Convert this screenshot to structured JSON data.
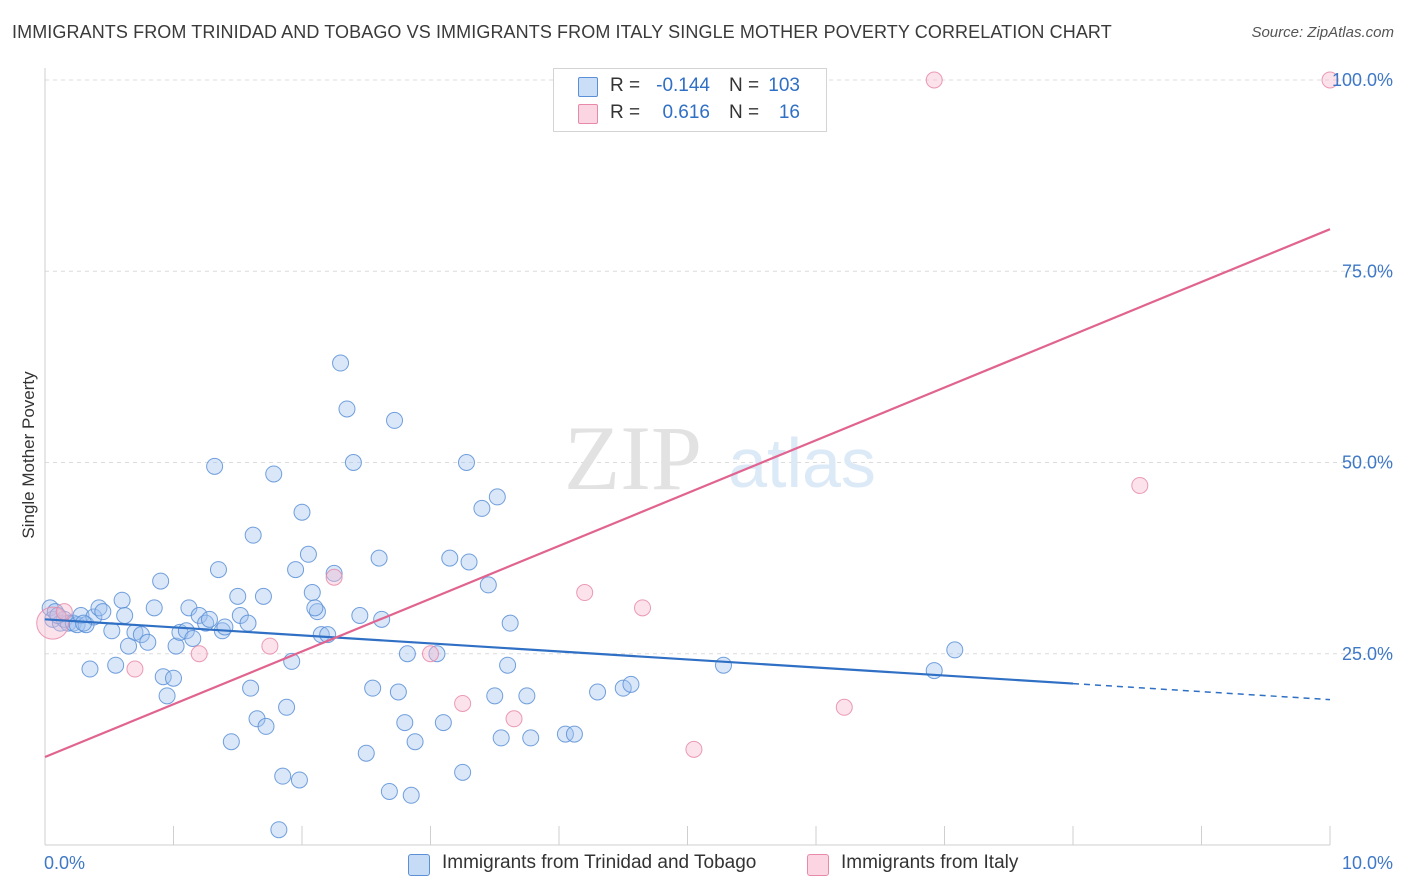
{
  "title": "IMMIGRANTS FROM TRINIDAD AND TOBAGO VS IMMIGRANTS FROM ITALY SINGLE MOTHER POVERTY CORRELATION CHART",
  "source": "Source: ZipAtlas.com",
  "watermark": {
    "zip": "ZIP",
    "atlas": "atlas"
  },
  "colors": {
    "blue": "#5b8fd6",
    "blue_fill": "rgba(160,195,240,0.40)",
    "blue_line": "#2f6fc4",
    "pink": "#e78aa8",
    "pink_fill": "rgba(248,185,205,0.40)",
    "pink_line": "#e0648f",
    "axis_text": "#3e78c6",
    "grid": "#dcdcdc"
  },
  "legend_top": {
    "rows": [
      {
        "r_label": "R =",
        "r_value": "-0.144",
        "n_label": "N =",
        "n_value": "103",
        "color": "blue"
      },
      {
        "r_label": "R =",
        "r_value": "0.616",
        "n_label": "N =",
        "n_value": "16",
        "color": "pink"
      }
    ]
  },
  "legend_bottom": [
    {
      "label": "Immigrants from Trinidad and Tobago",
      "color": "blue"
    },
    {
      "label": "Immigrants from Italy",
      "color": "pink"
    }
  ],
  "chart_data": {
    "type": "scatter",
    "title": "IMMIGRANTS FROM TRINIDAD AND TOBAGO VS IMMIGRANTS FROM ITALY SINGLE MOTHER POVERTY CORRELATION CHART",
    "xlabel": "",
    "ylabel": "Single Mother Poverty",
    "xlim": [
      0,
      10
    ],
    "ylim": [
      0,
      100
    ],
    "x_tick_labels": [
      {
        "value": 0,
        "label": "0.0%"
      },
      {
        "value": 10,
        "label": "10.0%"
      }
    ],
    "y_tick_labels": [
      {
        "value": 25,
        "label": "25.0%"
      },
      {
        "value": 50,
        "label": "50.0%"
      },
      {
        "value": 75,
        "label": "75.0%"
      },
      {
        "value": 100,
        "label": "100.0%"
      }
    ],
    "series": [
      {
        "name": "Immigrants from Trinidad and Tobago",
        "color": "blue",
        "trend": {
          "x0": 0,
          "y0": 29.5,
          "x1": 8.0,
          "y1": 21.1,
          "dash_to_x": 10,
          "dash_to_y": 19.0
        },
        "points": [
          [
            0.04,
            31
          ],
          [
            0.06,
            29.5
          ],
          [
            0.08,
            30.5
          ],
          [
            0.12,
            29
          ],
          [
            0.15,
            29.5
          ],
          [
            0.18,
            29
          ],
          [
            0.22,
            29
          ],
          [
            0.25,
            28.8
          ],
          [
            0.28,
            30
          ],
          [
            0.32,
            28.8
          ],
          [
            0.38,
            29.8
          ],
          [
            0.42,
            31
          ],
          [
            0.45,
            30.5
          ],
          [
            0.52,
            28
          ],
          [
            0.6,
            32
          ],
          [
            0.62,
            30
          ],
          [
            0.7,
            27.8
          ],
          [
            0.75,
            27.5
          ],
          [
            0.8,
            26.5
          ],
          [
            0.85,
            31
          ],
          [
            0.9,
            34.5
          ],
          [
            0.92,
            22
          ],
          [
            0.95,
            19.5
          ],
          [
            1.0,
            21.8
          ],
          [
            1.02,
            26
          ],
          [
            1.05,
            27.8
          ],
          [
            1.1,
            28
          ],
          [
            1.12,
            31
          ],
          [
            1.15,
            27
          ],
          [
            1.2,
            30
          ],
          [
            1.25,
            29
          ],
          [
            1.28,
            29.5
          ],
          [
            1.32,
            49.5
          ],
          [
            1.35,
            36
          ],
          [
            1.38,
            28
          ],
          [
            1.45,
            13.5
          ],
          [
            1.5,
            32.5
          ],
          [
            1.52,
            30
          ],
          [
            1.58,
            29
          ],
          [
            1.6,
            20.5
          ],
          [
            1.62,
            40.5
          ],
          [
            1.65,
            16.5
          ],
          [
            1.7,
            32.5
          ],
          [
            1.72,
            15.5
          ],
          [
            1.78,
            48.5
          ],
          [
            1.82,
            2
          ],
          [
            1.85,
            9
          ],
          [
            1.88,
            18
          ],
          [
            1.92,
            24
          ],
          [
            1.95,
            36
          ],
          [
            1.98,
            8.5
          ],
          [
            2.0,
            43.5
          ],
          [
            2.05,
            38
          ],
          [
            2.08,
            33
          ],
          [
            2.12,
            30.5
          ],
          [
            2.15,
            27.5
          ],
          [
            2.2,
            27.5
          ],
          [
            2.25,
            35.5
          ],
          [
            2.3,
            63
          ],
          [
            2.35,
            57
          ],
          [
            2.4,
            50
          ],
          [
            2.45,
            30
          ],
          [
            2.5,
            12
          ],
          [
            2.6,
            37.5
          ],
          [
            2.62,
            29.5
          ],
          [
            2.68,
            7
          ],
          [
            2.72,
            55.5
          ],
          [
            2.75,
            20
          ],
          [
            2.8,
            16
          ],
          [
            2.82,
            25
          ],
          [
            2.85,
            6.5
          ],
          [
            2.88,
            13.5
          ],
          [
            3.1,
            16
          ],
          [
            3.15,
            37.5
          ],
          [
            3.25,
            9.5
          ],
          [
            3.28,
            50
          ],
          [
            3.3,
            37
          ],
          [
            3.4,
            44
          ],
          [
            3.45,
            34
          ],
          [
            3.5,
            19.5
          ],
          [
            3.52,
            45.5
          ],
          [
            3.55,
            14
          ],
          [
            3.6,
            23.5
          ],
          [
            3.62,
            29
          ],
          [
            3.75,
            19.5
          ],
          [
            3.78,
            14
          ],
          [
            4.05,
            14.5
          ],
          [
            4.12,
            14.5
          ],
          [
            4.3,
            20
          ],
          [
            4.5,
            20.5
          ],
          [
            4.56,
            21
          ],
          [
            5.28,
            23.5
          ],
          [
            6.92,
            22.8
          ],
          [
            7.08,
            25.5
          ],
          [
            0.1,
            30
          ],
          [
            0.3,
            29
          ],
          [
            1.4,
            28.5
          ],
          [
            2.1,
            31
          ],
          [
            0.55,
            23.5
          ],
          [
            0.65,
            26
          ],
          [
            0.35,
            23
          ],
          [
            2.55,
            20.5
          ],
          [
            3.05,
            25
          ]
        ]
      },
      {
        "name": "Immigrants from Italy",
        "color": "pink",
        "trend": {
          "x0": 0,
          "y0": 11.5,
          "x1": 10,
          "y1": 80.5
        },
        "points": [
          [
            0.06,
            29
          ],
          [
            0.15,
            30.5
          ],
          [
            0.7,
            23
          ],
          [
            1.2,
            25
          ],
          [
            1.75,
            26
          ],
          [
            2.25,
            35
          ],
          [
            3.0,
            25
          ],
          [
            3.25,
            18.5
          ],
          [
            3.65,
            16.5
          ],
          [
            4.2,
            33
          ],
          [
            4.65,
            31
          ],
          [
            5.05,
            12.5
          ],
          [
            6.22,
            18
          ],
          [
            6.92,
            100
          ],
          [
            8.52,
            47
          ],
          [
            10.0,
            100
          ]
        ]
      }
    ]
  }
}
